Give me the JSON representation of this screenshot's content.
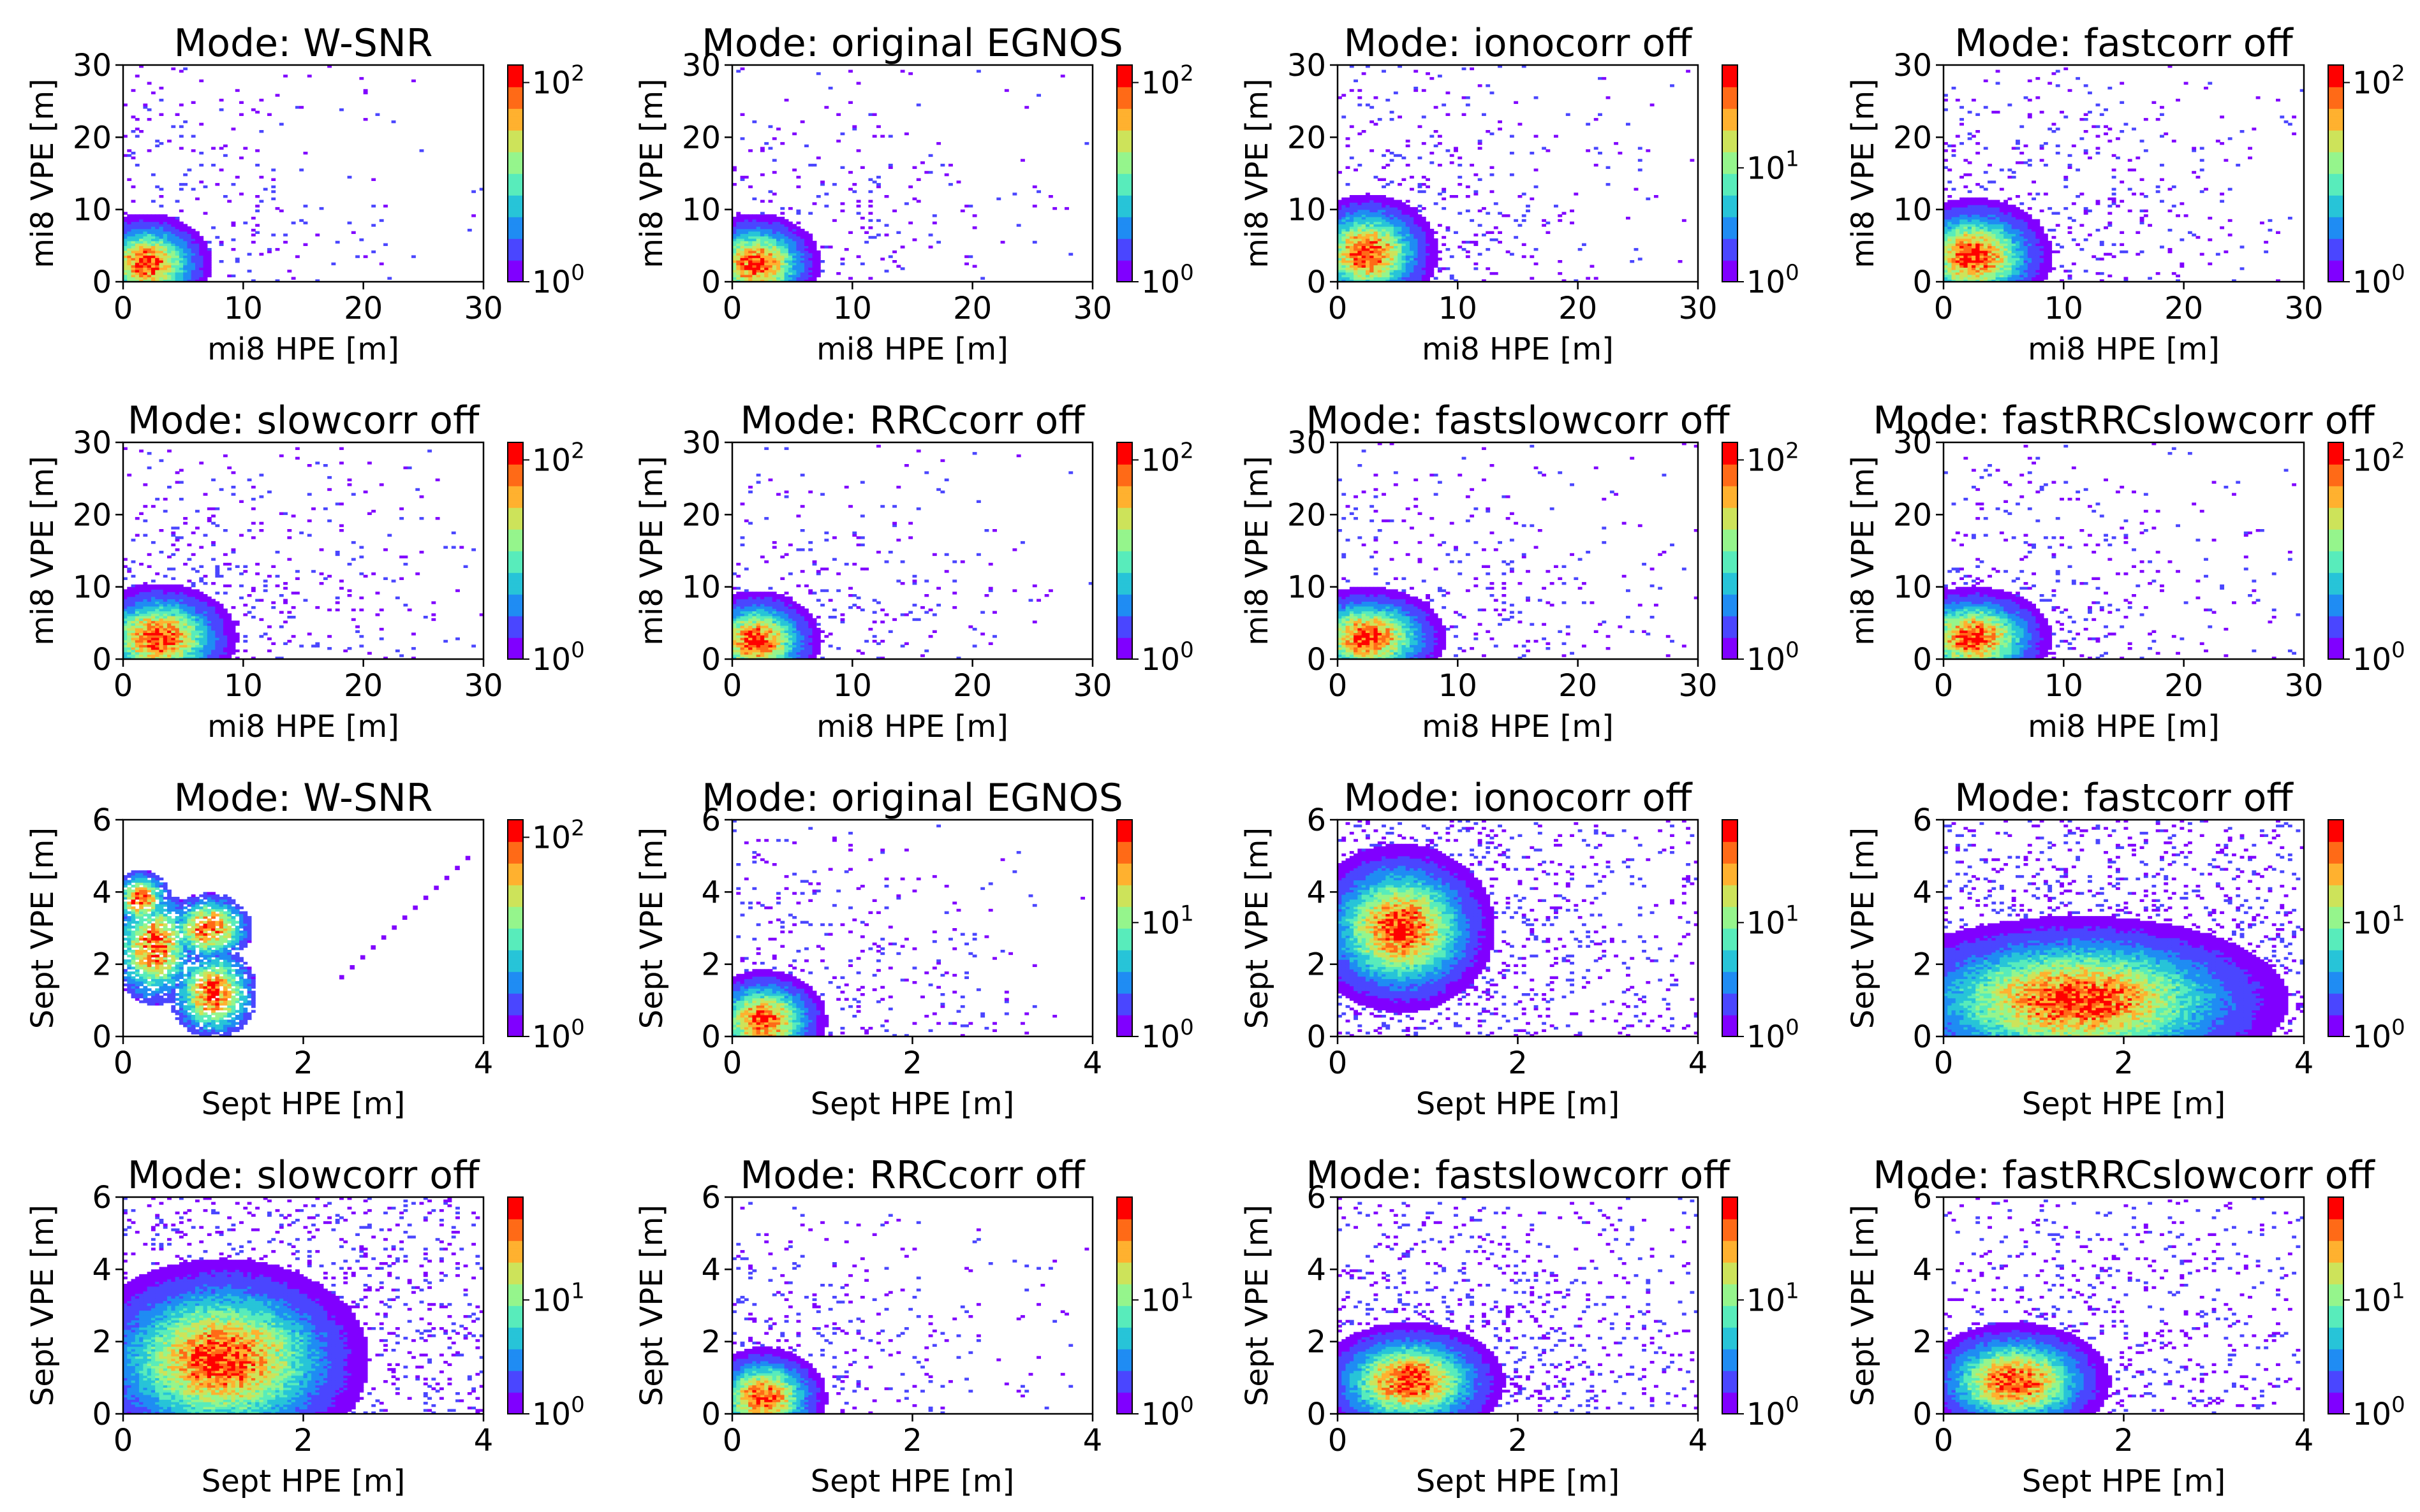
{
  "figure": {
    "rows": 4,
    "cols": 4
  },
  "colormap": [
    "#8000ff",
    "#4a46ff",
    "#1f8cf3",
    "#27c4d8",
    "#58ecbb",
    "#95f58c",
    "#cde35a",
    "#ffb12f",
    "#ff6a17",
    "#ff0000"
  ],
  "chart_data": [
    {
      "type": "heatmap",
      "title": "Mode: W-SNR",
      "xlabel": "mi8 HPE [m]",
      "ylabel": "mi8 VPE [m]",
      "xlim": [
        0,
        30
      ],
      "ylim": [
        0,
        30
      ],
      "xticks": [
        "0",
        "10",
        "20",
        "30"
      ],
      "yticks": [
        "0",
        "10",
        "20",
        "30"
      ],
      "colorbar": {
        "scale": "log",
        "min": 1,
        "max": 150,
        "ticks": [
          {
            "value": 1,
            "base": "10",
            "exp": "0"
          },
          {
            "value": 100,
            "base": "10",
            "exp": "2"
          }
        ]
      },
      "density": {
        "type": "blob",
        "cx": 2,
        "cy": 2.5,
        "sx": 2.3,
        "sy": 3.0,
        "spread": 0.08
      }
    },
    {
      "type": "heatmap",
      "title": "Mode: original EGNOS",
      "xlabel": "mi8 HPE [m]",
      "ylabel": "mi8 VPE [m]",
      "xlim": [
        0,
        30
      ],
      "ylim": [
        0,
        30
      ],
      "xticks": [
        "0",
        "10",
        "20",
        "30"
      ],
      "yticks": [
        "0",
        "10",
        "20",
        "30"
      ],
      "colorbar": {
        "scale": "log",
        "min": 1,
        "max": 150,
        "ticks": [
          {
            "value": 1,
            "base": "10",
            "exp": "0"
          },
          {
            "value": 100,
            "base": "10",
            "exp": "2"
          }
        ]
      },
      "density": {
        "type": "blob",
        "cx": 2,
        "cy": 2.5,
        "sx": 2.3,
        "sy": 3.0,
        "spread": 0.09
      }
    },
    {
      "type": "heatmap",
      "title": "Mode: ionocorr off",
      "xlabel": "mi8 HPE [m]",
      "ylabel": "mi8 VPE [m]",
      "xlim": [
        0,
        30
      ],
      "ylim": [
        0,
        30
      ],
      "xticks": [
        "0",
        "10",
        "20",
        "30"
      ],
      "yticks": [
        "0",
        "10",
        "20",
        "30"
      ],
      "colorbar": {
        "scale": "log",
        "min": 1,
        "max": 80,
        "ticks": [
          {
            "value": 1,
            "base": "10",
            "exp": "0"
          },
          {
            "value": 10,
            "base": "10",
            "exp": "1"
          }
        ]
      },
      "density": {
        "type": "blob",
        "cx": 2.5,
        "cy": 4,
        "sx": 2.5,
        "sy": 3.5,
        "spread": 0.1
      }
    },
    {
      "type": "heatmap",
      "title": "Mode: fastcorr off",
      "xlabel": "mi8 HPE [m]",
      "ylabel": "mi8 VPE [m]",
      "xlim": [
        0,
        30
      ],
      "ylim": [
        0,
        30
      ],
      "xticks": [
        "0",
        "10",
        "20",
        "30"
      ],
      "yticks": [
        "0",
        "10",
        "20",
        "30"
      ],
      "colorbar": {
        "scale": "log",
        "min": 1,
        "max": 150,
        "ticks": [
          {
            "value": 1,
            "base": "10",
            "exp": "0"
          },
          {
            "value": 100,
            "base": "10",
            "exp": "2"
          }
        ]
      },
      "density": {
        "type": "blob",
        "cx": 2.5,
        "cy": 3.5,
        "sx": 2.8,
        "sy": 3.5,
        "spread": 0.12
      }
    },
    {
      "type": "heatmap",
      "title": "Mode: slowcorr off",
      "xlabel": "mi8 HPE [m]",
      "ylabel": "mi8 VPE [m]",
      "xlim": [
        0,
        30
      ],
      "ylim": [
        0,
        30
      ],
      "xticks": [
        "0",
        "10",
        "20",
        "30"
      ],
      "yticks": [
        "0",
        "10",
        "20",
        "30"
      ],
      "colorbar": {
        "scale": "log",
        "min": 1,
        "max": 150,
        "ticks": [
          {
            "value": 1,
            "base": "10",
            "exp": "0"
          },
          {
            "value": 100,
            "base": "10",
            "exp": "2"
          }
        ]
      },
      "density": {
        "type": "blob",
        "cx": 3,
        "cy": 3,
        "sx": 2.8,
        "sy": 3.2,
        "spread": 0.1
      }
    },
    {
      "type": "heatmap",
      "title": "Mode: RRCcorr off",
      "xlabel": "mi8 HPE [m]",
      "ylabel": "mi8 VPE [m]",
      "xlim": [
        0,
        30
      ],
      "ylim": [
        0,
        30
      ],
      "xticks": [
        "0",
        "10",
        "20",
        "30"
      ],
      "yticks": [
        "0",
        "10",
        "20",
        "30"
      ],
      "colorbar": {
        "scale": "log",
        "min": 1,
        "max": 150,
        "ticks": [
          {
            "value": 1,
            "base": "10",
            "exp": "0"
          },
          {
            "value": 100,
            "base": "10",
            "exp": "2"
          }
        ]
      },
      "density": {
        "type": "blob",
        "cx": 2,
        "cy": 2.5,
        "sx": 2.3,
        "sy": 3.0,
        "spread": 0.09
      }
    },
    {
      "type": "heatmap",
      "title": "Mode: fastslowcorr off",
      "xlabel": "mi8 HPE [m]",
      "ylabel": "mi8 VPE [m]",
      "xlim": [
        0,
        30
      ],
      "ylim": [
        0,
        30
      ],
      "xticks": [
        "0",
        "10",
        "20",
        "30"
      ],
      "yticks": [
        "0",
        "10",
        "20",
        "30"
      ],
      "colorbar": {
        "scale": "log",
        "min": 1,
        "max": 150,
        "ticks": [
          {
            "value": 1,
            "base": "10",
            "exp": "0"
          },
          {
            "value": 100,
            "base": "10",
            "exp": "2"
          }
        ]
      },
      "density": {
        "type": "blob",
        "cx": 2.5,
        "cy": 3,
        "sx": 2.8,
        "sy": 3.0,
        "spread": 0.1
      }
    },
    {
      "type": "heatmap",
      "title": "Mode: fastRRCslowcorr off",
      "xlabel": "mi8 HPE [m]",
      "ylabel": "mi8 VPE [m]",
      "xlim": [
        0,
        30
      ],
      "ylim": [
        0,
        30
      ],
      "xticks": [
        "0",
        "10",
        "20",
        "30"
      ],
      "yticks": [
        "0",
        "10",
        "20",
        "30"
      ],
      "colorbar": {
        "scale": "log",
        "min": 1,
        "max": 150,
        "ticks": [
          {
            "value": 1,
            "base": "10",
            "exp": "0"
          },
          {
            "value": 100,
            "base": "10",
            "exp": "2"
          }
        ]
      },
      "density": {
        "type": "blob",
        "cx": 2.5,
        "cy": 3,
        "sx": 2.8,
        "sy": 3.0,
        "spread": 0.1
      }
    },
    {
      "type": "heatmap",
      "title": "Mode: W-SNR",
      "xlabel": "Sept HPE [m]",
      "ylabel": "Sept VPE [m]",
      "xlim": [
        0,
        4
      ],
      "ylim": [
        0,
        6
      ],
      "xticks": [
        "0",
        "2",
        "4"
      ],
      "yticks": [
        "0",
        "2",
        "4",
        "6"
      ],
      "colorbar": {
        "scale": "log",
        "min": 1,
        "max": 150,
        "ticks": [
          {
            "value": 1,
            "base": "10",
            "exp": "0"
          },
          {
            "value": 100,
            "base": "10",
            "exp": "2"
          }
        ]
      },
      "density": {
        "type": "patches",
        "patches": [
          [
            0.35,
            2.5,
            0.3,
            1.0
          ],
          [
            1.0,
            1.2,
            0.3,
            0.8
          ],
          [
            0.95,
            3.0,
            0.3,
            0.6
          ],
          [
            0.2,
            3.8,
            0.2,
            0.5
          ]
        ],
        "streak": {
          "from": [
            2.4,
            1.7
          ],
          "to": [
            3.8,
            5.0
          ]
        }
      }
    },
    {
      "type": "heatmap",
      "title": "Mode: original EGNOS",
      "xlabel": "Sept HPE [m]",
      "ylabel": "Sept VPE [m]",
      "xlim": [
        0,
        4
      ],
      "ylim": [
        0,
        6
      ],
      "xticks": [
        "0",
        "2",
        "4"
      ],
      "yticks": [
        "0",
        "2",
        "4",
        "6"
      ],
      "colorbar": {
        "scale": "log",
        "min": 1,
        "max": 80,
        "ticks": [
          {
            "value": 1,
            "base": "10",
            "exp": "0"
          },
          {
            "value": 10,
            "base": "10",
            "exp": "1"
          }
        ]
      },
      "density": {
        "type": "blob",
        "cx": 0.35,
        "cy": 0.45,
        "sx": 0.3,
        "sy": 0.6,
        "spread": 0.12
      }
    },
    {
      "type": "heatmap",
      "title": "Mode: ionocorr off",
      "xlabel": "Sept HPE [m]",
      "ylabel": "Sept VPE [m]",
      "xlim": [
        0,
        4
      ],
      "ylim": [
        0,
        6
      ],
      "xticks": [
        "0",
        "2",
        "4"
      ],
      "yticks": [
        "0",
        "2",
        "4",
        "6"
      ],
      "colorbar": {
        "scale": "log",
        "min": 1,
        "max": 80,
        "ticks": [
          {
            "value": 1,
            "base": "10",
            "exp": "0"
          },
          {
            "value": 10,
            "base": "10",
            "exp": "1"
          }
        ]
      },
      "density": {
        "type": "blob",
        "cx": 0.7,
        "cy": 3.0,
        "sx": 0.45,
        "sy": 1.0,
        "spread": 0.15
      }
    },
    {
      "type": "heatmap",
      "title": "Mode: fastcorr off",
      "xlabel": "Sept HPE [m]",
      "ylabel": "Sept VPE [m]",
      "xlim": [
        0,
        4
      ],
      "ylim": [
        0,
        6
      ],
      "xticks": [
        "0",
        "2",
        "4"
      ],
      "yticks": [
        "0",
        "2",
        "4",
        "6"
      ],
      "colorbar": {
        "scale": "log",
        "min": 1,
        "max": 80,
        "ticks": [
          {
            "value": 1,
            "base": "10",
            "exp": "0"
          },
          {
            "value": 10,
            "base": "10",
            "exp": "1"
          }
        ]
      },
      "density": {
        "type": "blob",
        "cx": 1.5,
        "cy": 1.0,
        "sx": 1.0,
        "sy": 1.0,
        "spread": 0.15
      }
    },
    {
      "type": "heatmap",
      "title": "Mode: slowcorr off",
      "xlabel": "Sept HPE [m]",
      "ylabel": "Sept VPE [m]",
      "xlim": [
        0,
        4
      ],
      "ylim": [
        0,
        6
      ],
      "xticks": [
        "0",
        "2",
        "4"
      ],
      "yticks": [
        "0",
        "2",
        "4",
        "6"
      ],
      "colorbar": {
        "scale": "log",
        "min": 1,
        "max": 80,
        "ticks": [
          {
            "value": 1,
            "base": "10",
            "exp": "0"
          },
          {
            "value": 10,
            "base": "10",
            "exp": "1"
          }
        ]
      },
      "density": {
        "type": "blob",
        "cx": 1.1,
        "cy": 1.5,
        "sx": 0.7,
        "sy": 1.2,
        "spread": 0.14
      }
    },
    {
      "type": "heatmap",
      "title": "Mode: RRCcorr off",
      "xlabel": "Sept HPE [m]",
      "ylabel": "Sept VPE [m]",
      "xlim": [
        0,
        4
      ],
      "ylim": [
        0,
        6
      ],
      "xticks": [
        "0",
        "2",
        "4"
      ],
      "yticks": [
        "0",
        "2",
        "4",
        "6"
      ],
      "colorbar": {
        "scale": "log",
        "min": 1,
        "max": 80,
        "ticks": [
          {
            "value": 1,
            "base": "10",
            "exp": "0"
          },
          {
            "value": 10,
            "base": "10",
            "exp": "1"
          }
        ]
      },
      "density": {
        "type": "blob",
        "cx": 0.35,
        "cy": 0.45,
        "sx": 0.3,
        "sy": 0.6,
        "spread": 0.12
      }
    },
    {
      "type": "heatmap",
      "title": "Mode: fastslowcorr off",
      "xlabel": "Sept HPE [m]",
      "ylabel": "Sept VPE [m]",
      "xlim": [
        0,
        4
      ],
      "ylim": [
        0,
        6
      ],
      "xticks": [
        "0",
        "2",
        "4"
      ],
      "yticks": [
        "0",
        "2",
        "4",
        "6"
      ],
      "colorbar": {
        "scale": "log",
        "min": 1,
        "max": 80,
        "ticks": [
          {
            "value": 1,
            "base": "10",
            "exp": "0"
          },
          {
            "value": 10,
            "base": "10",
            "exp": "1"
          }
        ]
      },
      "density": {
        "type": "blob",
        "cx": 0.8,
        "cy": 0.9,
        "sx": 0.45,
        "sy": 0.7,
        "spread": 0.14
      }
    },
    {
      "type": "heatmap",
      "title": "Mode: fastRRCslowcorr off",
      "xlabel": "Sept HPE [m]",
      "ylabel": "Sept VPE [m]",
      "xlim": [
        0,
        4
      ],
      "ylim": [
        0,
        6
      ],
      "xticks": [
        "0",
        "2",
        "4"
      ],
      "yticks": [
        "0",
        "2",
        "4",
        "6"
      ],
      "colorbar": {
        "scale": "log",
        "min": 1,
        "max": 80,
        "ticks": [
          {
            "value": 1,
            "base": "10",
            "exp": "0"
          },
          {
            "value": 10,
            "base": "10",
            "exp": "1"
          }
        ]
      },
      "density": {
        "type": "blob",
        "cx": 0.8,
        "cy": 0.9,
        "sx": 0.45,
        "sy": 0.7,
        "spread": 0.14
      }
    }
  ]
}
